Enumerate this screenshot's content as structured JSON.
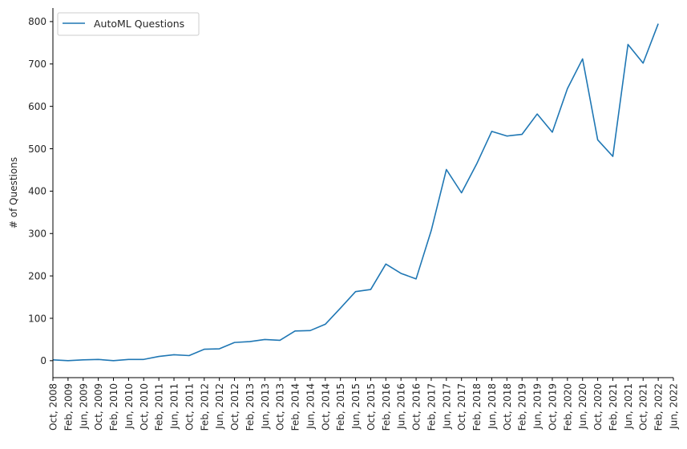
{
  "chart_data": {
    "type": "line",
    "ylabel": "# of Questions",
    "xlabel": "",
    "ylim": [
      -40,
      832
    ],
    "y_ticks": [
      0,
      100,
      200,
      300,
      400,
      500,
      600,
      700,
      800
    ],
    "legend_position": "top-left",
    "grid": false,
    "x_tick_labels": [
      "Oct, 2008",
      "Feb, 2009",
      "Jun, 2009",
      "Oct, 2009",
      "Feb, 2010",
      "Jun, 2010",
      "Oct, 2010",
      "Feb, 2011",
      "Jun, 2011",
      "Oct, 2011",
      "Feb, 2012",
      "Jun, 2012",
      "Oct, 2012",
      "Feb, 2013",
      "Jun, 2013",
      "Oct, 2013",
      "Feb, 2014",
      "Jun, 2014",
      "Oct, 2014",
      "Feb, 2015",
      "Jun, 2015",
      "Oct, 2015",
      "Feb, 2016",
      "Jun, 2016",
      "Oct, 2016",
      "Feb, 2017",
      "Jun, 2017",
      "Oct, 2017",
      "Feb, 2018",
      "Jun, 2018",
      "Oct, 2018",
      "Feb, 2019",
      "Jun, 2019",
      "Oct, 2019",
      "Feb, 2020",
      "Jun, 2020",
      "Oct, 2020",
      "Feb, 2021",
      "Jun, 2021",
      "Oct, 2021",
      "Feb, 2022",
      "Jun, 2022"
    ],
    "series": [
      {
        "name": "AutoML Questions",
        "color": "#1f77b4",
        "x": [
          "Oct, 2008",
          "Feb, 2009",
          "Jun, 2009",
          "Oct, 2009",
          "Feb, 2010",
          "Jun, 2010",
          "Oct, 2010",
          "Feb, 2011",
          "Jun, 2011",
          "Oct, 2011",
          "Feb, 2012",
          "Jun, 2012",
          "Oct, 2012",
          "Feb, 2013",
          "Jun, 2013",
          "Oct, 2013",
          "Feb, 2014",
          "Jun, 2014",
          "Oct, 2014",
          "Feb, 2015",
          "Jun, 2015",
          "Oct, 2015",
          "Feb, 2016",
          "Jun, 2016",
          "Oct, 2016",
          "Feb, 2017",
          "Jun, 2017",
          "Oct, 2017",
          "Feb, 2018",
          "Jun, 2018",
          "Oct, 2018",
          "Feb, 2019",
          "Jun, 2019",
          "Oct, 2019",
          "Feb, 2020",
          "Jun, 2020",
          "Oct, 2020",
          "Feb, 2021",
          "Jun, 2021",
          "Oct, 2021",
          "Feb, 2022"
        ],
        "values": [
          2,
          0,
          2,
          3,
          0,
          3,
          3,
          10,
          14,
          12,
          27,
          28,
          43,
          45,
          50,
          48,
          70,
          71,
          86,
          124,
          163,
          168,
          228,
          206,
          193,
          307,
          451,
          396,
          464,
          541,
          530,
          534,
          582,
          539,
          642,
          712,
          521,
          482,
          746,
          702,
          795
        ]
      }
    ]
  }
}
